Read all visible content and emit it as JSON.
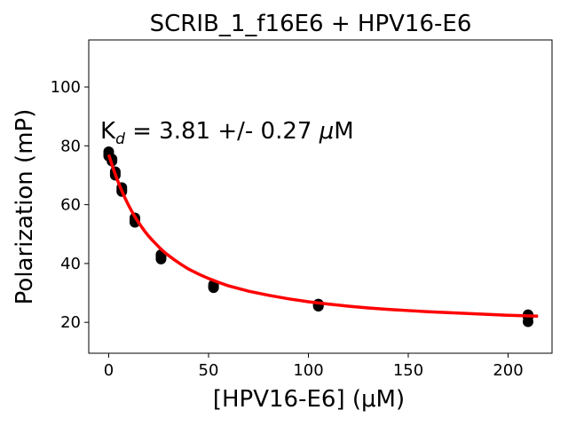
{
  "chart_data": {
    "type": "scatter",
    "title": "SCRIB_1_f16E6 + HPV16-E6",
    "xlabel": "[HPV16-E6] (μM)",
    "ylabel": "Polarization (mP)",
    "xlim": [
      -10,
      222
    ],
    "ylim": [
      9.5,
      116
    ],
    "xticks": [
      0,
      50,
      100,
      150,
      200
    ],
    "yticks": [
      20,
      40,
      60,
      80,
      100
    ],
    "grid": false,
    "annotation": {
      "k": "K",
      "sub": "d",
      "rest": " = 3.81 +/- 0.27 ",
      "mu": "μ",
      "unit": "M"
    },
    "series": [
      {
        "type": "scatter",
        "color": "#000000",
        "x": [
          0,
          0,
          0,
          1.64,
          1.64,
          3.28,
          3.28,
          3.28,
          6.56,
          6.56,
          6.56,
          13.1,
          13.1,
          13.1,
          26.2,
          26.2,
          26.2,
          52.5,
          52.5,
          52.5,
          105,
          105,
          105,
          210,
          210,
          210
        ],
        "y": [
          78.0,
          76.5,
          77.2,
          75.5,
          74.8,
          71.2,
          70.5,
          70.0,
          65.8,
          65.0,
          64.5,
          55.5,
          54.8,
          54.0,
          43.0,
          42.2,
          41.5,
          32.8,
          32.2,
          31.8,
          26.2,
          25.8,
          25.5,
          22.6,
          21.8,
          20.2
        ]
      },
      {
        "type": "line",
        "color": "#ff0000",
        "x": [
          0,
          1,
          2,
          3,
          4,
          5,
          6,
          7,
          8,
          9,
          10,
          12,
          14,
          16,
          18,
          20,
          22,
          24,
          26,
          28,
          30,
          33,
          36,
          40,
          45,
          50,
          55,
          60,
          70,
          80,
          90,
          100,
          110,
          120,
          130,
          140,
          150,
          160,
          170,
          180,
          190,
          200,
          210,
          215
        ],
        "y": [
          77.0,
          74.9,
          72.8,
          70.9,
          69.0,
          67.3,
          65.6,
          64.0,
          62.5,
          61.1,
          59.7,
          57.2,
          54.9,
          52.9,
          51.0,
          49.3,
          47.8,
          46.4,
          45.0,
          43.8,
          42.7,
          41.2,
          39.8,
          38.1,
          36.4,
          34.9,
          33.6,
          32.4,
          30.6,
          29.2,
          28.0,
          27.0,
          26.2,
          25.5,
          24.9,
          24.4,
          24.0,
          23.6,
          23.3,
          23.0,
          22.7,
          22.4,
          22.2,
          22.1
        ]
      }
    ]
  }
}
